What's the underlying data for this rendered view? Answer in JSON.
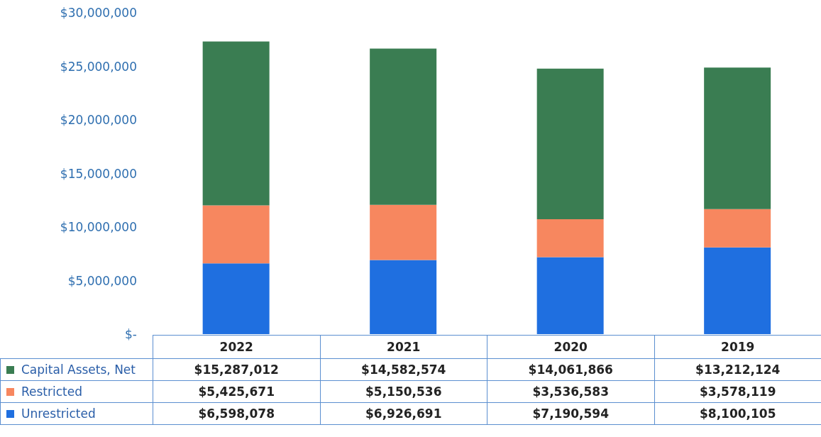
{
  "chart_data": {
    "type": "bar",
    "stacked": true,
    "legend": "bottom",
    "categories": [
      "2022",
      "2021",
      "2020",
      "2019"
    ],
    "series": [
      {
        "name": "Unrestricted",
        "color": "#1f6fe0",
        "values": [
          6598078,
          6926691,
          7190594,
          8100105
        ],
        "value_labels": [
          "$6,598,078",
          "$6,926,691",
          "$7,190,594",
          "$8,100,105"
        ]
      },
      {
        "name": "Restricted",
        "color": "#f7875f",
        "values": [
          5425671,
          5150536,
          3536583,
          3578119
        ],
        "value_labels": [
          "$5,425,671",
          "$5,150,536",
          "$3,536,583",
          "$3,578,119"
        ]
      },
      {
        "name": "Capital Assets, Net",
        "color": "#3a7d52",
        "values": [
          15287012,
          14582574,
          14061866,
          13212124
        ],
        "value_labels": [
          "$15,287,012",
          "$14,582,574",
          "$14,061,866",
          "$13,212,124"
        ]
      }
    ],
    "ylim": [
      0,
      30000000
    ],
    "yticks": [
      {
        "value": 0,
        "label": "$-"
      },
      {
        "value": 5000000,
        "label": "$5,000,000"
      },
      {
        "value": 10000000,
        "label": "$10,000,000"
      },
      {
        "value": 15000000,
        "label": "$15,000,000"
      },
      {
        "value": 20000000,
        "label": "$20,000,000"
      },
      {
        "value": 25000000,
        "label": "$25,000,000"
      },
      {
        "value": 30000000,
        "label": "$30,000,000"
      }
    ]
  }
}
